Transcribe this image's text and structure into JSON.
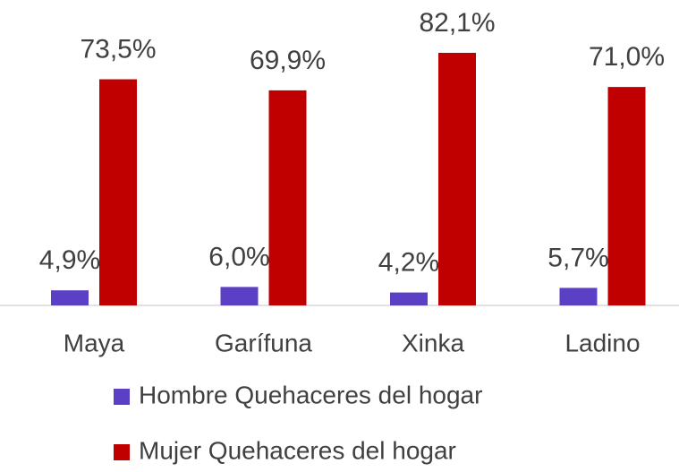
{
  "chart_data": {
    "type": "bar",
    "categories": [
      "Maya",
      "Garífuna",
      "Xinka",
      "Ladino"
    ],
    "series": [
      {
        "name": "Hombre Quehaceres del hogar",
        "color": "#5b3fc4",
        "values": [
          4.9,
          6.0,
          4.2,
          5.7
        ],
        "value_labels": [
          "4,9%",
          "6,0%",
          "4,2%",
          "5,7%"
        ]
      },
      {
        "name": "Mujer Quehaceres del hogar",
        "color": "#c00000",
        "values": [
          73.5,
          69.9,
          82.1,
          71.0
        ],
        "value_labels": [
          "73,5%",
          "69,9%",
          "82,1%",
          "71,0%"
        ]
      }
    ],
    "ylim": [
      0,
      100
    ],
    "legend": "bottom"
  }
}
